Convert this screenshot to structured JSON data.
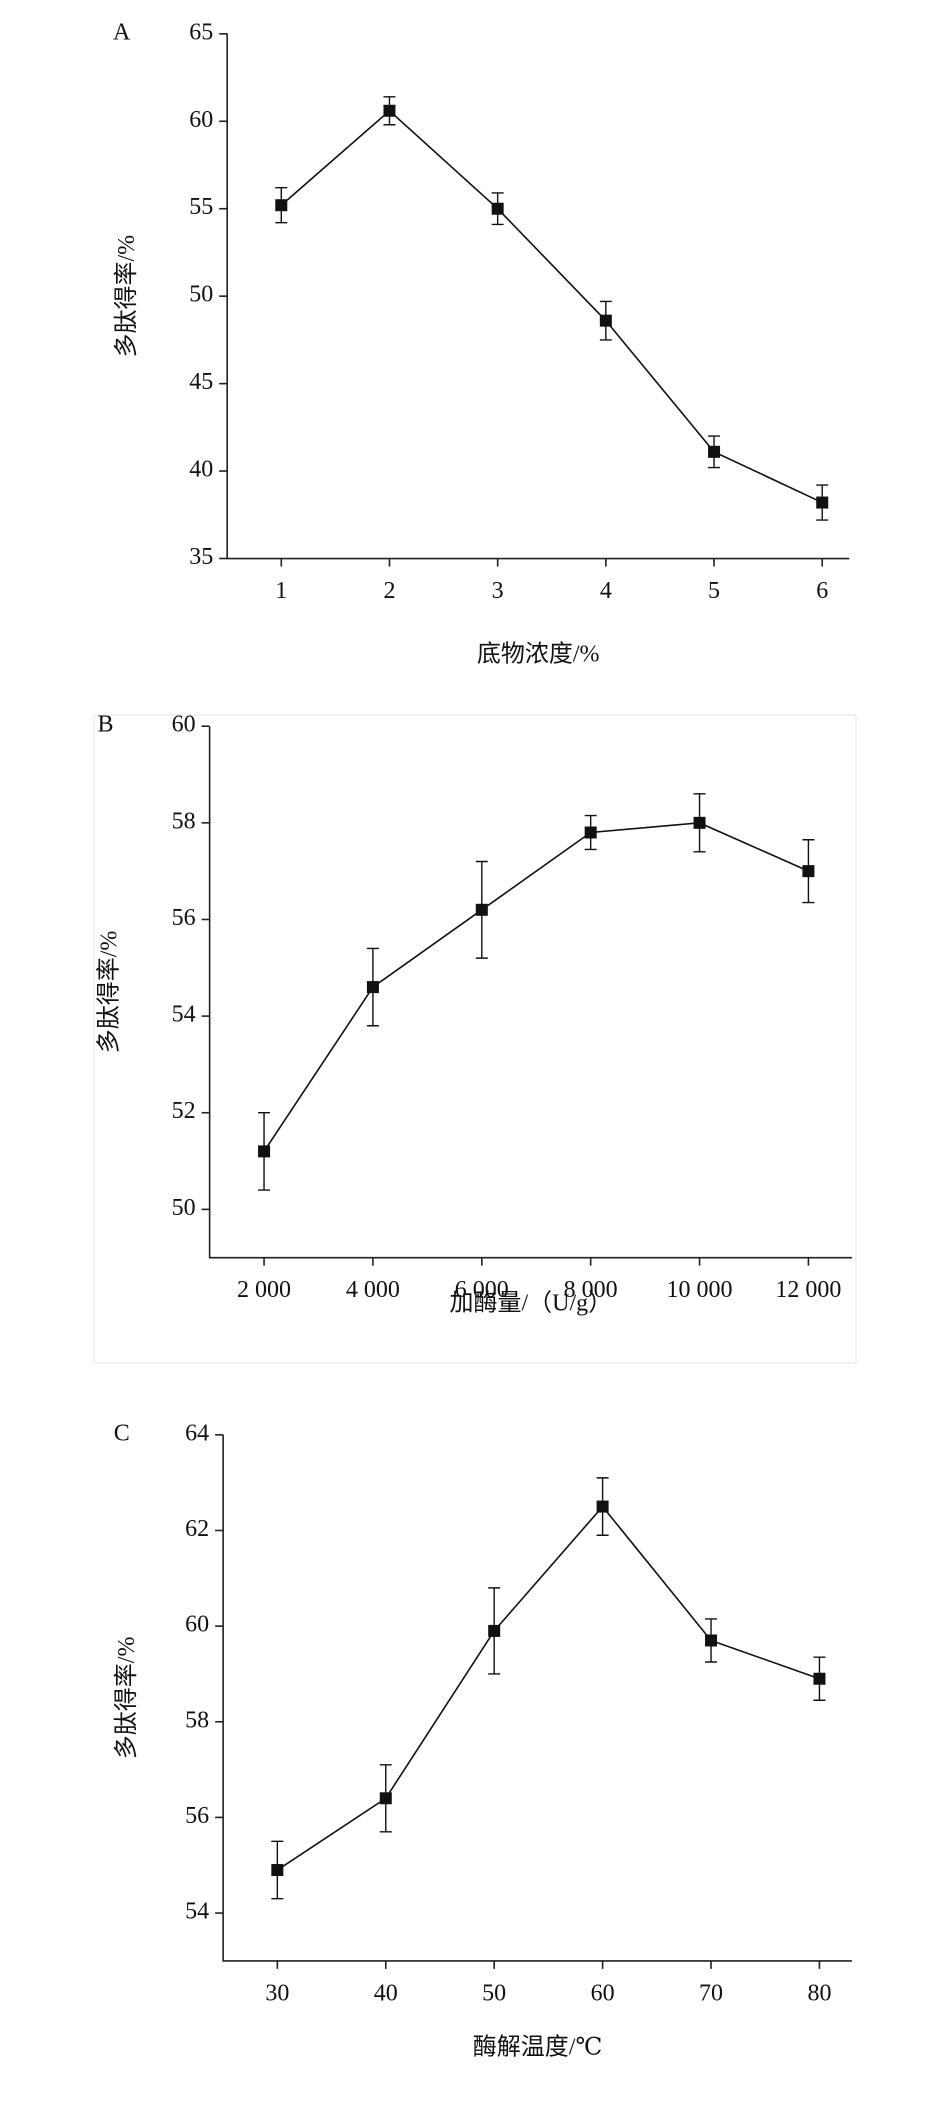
{
  "chart_data": [
    {
      "type": "line",
      "label": "A",
      "ylabel": "多肽得率/%",
      "xlabel": "底物浓度/%",
      "x": [
        1,
        2,
        3,
        4,
        5,
        6
      ],
      "series": [
        {
          "color": "#111111",
          "values": [
            55.2,
            60.6,
            55.0,
            48.6,
            41.1,
            38.2
          ],
          "errors": [
            1.0,
            0.8,
            0.9,
            1.1,
            0.9,
            1.0
          ]
        }
      ],
      "xlim": [
        0.5,
        6.25
      ],
      "xticks": [
        1,
        2,
        3,
        4,
        5,
        6
      ],
      "ylim": [
        35,
        65
      ],
      "yticks": [
        35,
        40,
        45,
        50,
        55,
        60,
        65
      ]
    },
    {
      "type": "line",
      "label": "B",
      "ylabel": "多肽得率/%",
      "xlabel": "加酶量/（U/g）",
      "x": [
        2000,
        4000,
        6000,
        8000,
        10000,
        12000
      ],
      "series": [
        {
          "color": "#111111",
          "values": [
            51.2,
            54.6,
            56.2,
            57.8,
            58.0,
            57.0
          ],
          "errors": [
            0.8,
            0.8,
            1.0,
            0.35,
            0.6,
            0.65
          ]
        }
      ],
      "xlim": [
        1000,
        12800
      ],
      "xticks": [
        {
          "value": 2000,
          "label": "2 000"
        },
        {
          "value": 4000,
          "label": "4 000"
        },
        {
          "value": 6000,
          "label": "6 000"
        },
        {
          "value": 8000,
          "label": "8 000"
        },
        {
          "value": 10000,
          "label": "10 000"
        },
        {
          "value": 12000,
          "label": "12 000"
        }
      ],
      "ylim": [
        49,
        60
      ],
      "yticks": [
        50,
        52,
        54,
        56,
        58,
        60
      ]
    },
    {
      "type": "line",
      "label": "C",
      "ylabel": "多肽得率/%",
      "xlabel": "酶解温度/℃",
      "x": [
        30,
        40,
        50,
        60,
        70,
        80
      ],
      "series": [
        {
          "color": "#111111",
          "values": [
            54.9,
            56.4,
            59.9,
            62.5,
            59.7,
            58.9
          ],
          "errors": [
            0.6,
            0.7,
            0.9,
            0.6,
            0.45,
            0.45
          ]
        }
      ],
      "xlim": [
        25,
        83
      ],
      "xticks": [
        30,
        40,
        50,
        60,
        70,
        80
      ],
      "ylim": [
        53,
        64
      ],
      "yticks": [
        54,
        56,
        58,
        60,
        62,
        64
      ]
    }
  ]
}
